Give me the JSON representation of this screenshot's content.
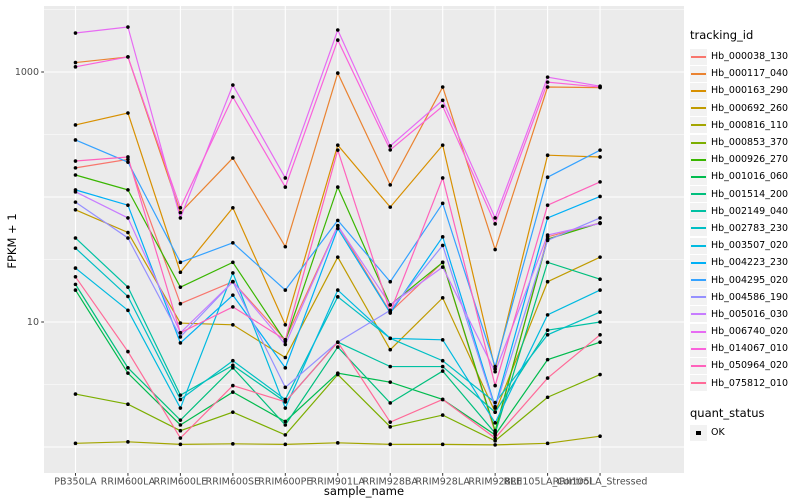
{
  "chart_data": {
    "type": "line",
    "xlabel": "sample_name",
    "ylabel": "FPKM + 1",
    "y_scale": "log10",
    "ylim_log10": [
      -0.208,
      3.528
    ],
    "y_gridlines": [
      1,
      10,
      100,
      1000
    ],
    "y_minor_gridlines_log10": [
      0.5,
      1.5,
      2.5,
      3.5
    ],
    "y_ticks": [
      {
        "value": 1000,
        "label": "1000"
      },
      {
        "value": 10,
        "label": "10"
      }
    ],
    "panel_bg": "#EBEBEB",
    "grid_color": "#FFFFFF",
    "point_color": "#000000",
    "tick_text_color": "#4D4D4D",
    "categories": [
      "PB350LA",
      "RRIM600LA",
      "RRIM600LE",
      "RRIM600SE",
      "RRIM600PE",
      "RRIM901LA",
      "RRIM928BA",
      "RRIM928LA",
      "RRIM928LE",
      "RRII105LA_Control",
      "RRII105LA_Stressed"
    ],
    "series": [
      {
        "name": "Hb_000038_130",
        "color": "#F8766D",
        "values": [
          171,
          200,
          14,
          21,
          7.2,
          59,
          12,
          30,
          1.3,
          48,
          62
        ]
      },
      {
        "name": "Hb_000117_040",
        "color": "#EA8331",
        "values": [
          1190,
          1320,
          75,
          205,
          40,
          980,
          125,
          758,
          38,
          758,
          750
        ]
      },
      {
        "name": "Hb_000163_290",
        "color": "#D89000",
        "values": [
          377,
          470,
          25,
          82,
          9.5,
          260,
          83,
          260,
          4.2,
          216,
          209
        ]
      },
      {
        "name": "Hb_000692_260",
        "color": "#C09B00",
        "values": [
          79,
          52,
          9.8,
          9.5,
          5.2,
          33,
          6,
          15.6,
          1.9,
          21,
          33
        ]
      },
      {
        "name": "Hb_000816_110",
        "color": "#A3A500",
        "values": [
          1.07,
          1.1,
          1.05,
          1.06,
          1.05,
          1.08,
          1.05,
          1.05,
          1.04,
          1.07,
          1.22
        ]
      },
      {
        "name": "Hb_000853_370",
        "color": "#7CAE00",
        "values": [
          2.65,
          2.2,
          1.35,
          1.9,
          1.25,
          3.8,
          1.45,
          1.8,
          1.12,
          2.5,
          3.8
        ]
      },
      {
        "name": "Hb_000926_270",
        "color": "#39B600",
        "values": [
          150,
          114,
          19,
          30,
          7,
          120,
          13.7,
          30,
          1.35,
          46,
          62
        ]
      },
      {
        "name": "Hb_001016_060",
        "color": "#00BB4E",
        "values": [
          18,
          3.9,
          1.5,
          2.75,
          1.6,
          3.9,
          3.3,
          2.4,
          1.25,
          5,
          6.9
        ]
      },
      {
        "name": "Hb_001514_200",
        "color": "#00BF7D",
        "values": [
          20,
          4.3,
          1.64,
          4.3,
          1.5,
          6.3,
          2.25,
          4.05,
          1.29,
          30,
          22
        ]
      },
      {
        "name": "Hb_002149_040",
        "color": "#00C1A3",
        "values": [
          47,
          19,
          2.6,
          4.5,
          2.3,
          6.9,
          4.4,
          4.4,
          1.9,
          8.6,
          10
        ]
      },
      {
        "name": "Hb_002783_230",
        "color": "#00BFC4",
        "values": [
          39,
          16,
          2.4,
          4.9,
          2.4,
          15.9,
          7.4,
          4.9,
          2.27,
          7.9,
          12
        ]
      },
      {
        "name": "Hb_003507_020",
        "color": "#00BAE0",
        "values": [
          27,
          12.4,
          2.05,
          24.7,
          2.05,
          18,
          7.4,
          7.2,
          1.56,
          11.4,
          18
        ]
      },
      {
        "name": "Hb_004223_230",
        "color": "#00B0F6",
        "values": [
          114,
          86,
          6.8,
          16.4,
          4.3,
          56,
          11.8,
          48,
          2.1,
          68,
          101
        ]
      },
      {
        "name": "Hb_004295_020",
        "color": "#35A2FF",
        "values": [
          286,
          190,
          30,
          43,
          18,
          65,
          21,
          89,
          4.4,
          144,
          237
        ]
      },
      {
        "name": "Hb_004586_190",
        "color": "#9590FF",
        "values": [
          91,
          47,
          7.6,
          21,
          3,
          6.9,
          12.4,
          41,
          2.05,
          45,
          68
        ]
      },
      {
        "name": "Hb_005016_030",
        "color": "#C77CFF",
        "values": [
          110,
          68,
          8.2,
          21,
          6.6,
          59,
          13.7,
          27.5,
          4,
          49.6,
          61.5
        ]
      },
      {
        "name": "Hb_006740_020",
        "color": "#E76BF3",
        "values": [
          2050,
          2290,
          68,
          787,
          142,
          2168,
          256,
          594,
          68,
          910,
          770
        ]
      },
      {
        "name": "Hb_014067_010",
        "color": "#FA62DB",
        "values": [
          1100,
          1320,
          82,
          631,
          120,
          1800,
          238,
          533,
          61,
          830,
          758
        ]
      },
      {
        "name": "Hb_050964_020",
        "color": "#FF62BC",
        "values": [
          194,
          209,
          8.2,
          13.2,
          7.2,
          237,
          12,
          142,
          3.1,
          86,
          132
        ]
      },
      {
        "name": "Hb_075812_010",
        "color": "#FF6A98",
        "values": [
          23,
          5.8,
          1.18,
          3.1,
          2.3,
          6.9,
          1.58,
          2.4,
          1.18,
          3.56,
          7.9
        ]
      }
    ],
    "legend": {
      "tracking_title": "tracking_id",
      "quant_title": "quant_status",
      "quant_status_label": "OK",
      "quant_point_color": "#000000"
    }
  }
}
